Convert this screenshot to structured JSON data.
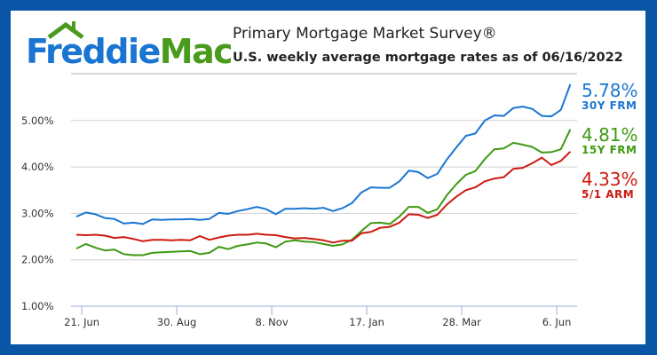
{
  "logo": {
    "part1": "Freddie",
    "part2": "Mac"
  },
  "header": {
    "title": "Primary Mortgage Market Survey®",
    "subtitle": "U.S. weekly average mortgage rates as of 06/16/2022"
  },
  "colors": {
    "border": "#0a55a6",
    "blue": "#1a76d2",
    "green": "#3f9a12",
    "red": "#cc1a10"
  },
  "chart_data": {
    "type": "line",
    "title": "Primary Mortgage Market Survey®",
    "subtitle": "U.S. weekly average mortgage rates as of 06/16/2022",
    "x_start": "2021-06-17",
    "x_interval": "weekly",
    "ylim": [
      1.0,
      5.9
    ],
    "y_ticks": [
      "1.00%",
      "2.00%",
      "3.00%",
      "4.00%",
      "5.00%"
    ],
    "y_tick_values": [
      1,
      2,
      3,
      4,
      5
    ],
    "x_ticks": [
      "21. Jun",
      "30. Aug",
      "8. Nov",
      "17. Jan",
      "28. Mar",
      "6. Jun"
    ],
    "x_tick_week_offsets": [
      0.57,
      10.57,
      20.57,
      30.57,
      40.57,
      50.57
    ],
    "grid": true,
    "series": [
      {
        "name": "30Y FRM",
        "latest": "5.78%",
        "color": "#1a76d2",
        "values": [
          2.93,
          3.02,
          2.98,
          2.9,
          2.88,
          2.78,
          2.8,
          2.77,
          2.87,
          2.86,
          2.87,
          2.87,
          2.88,
          2.86,
          2.88,
          3.01,
          2.99,
          3.05,
          3.09,
          3.14,
          3.09,
          2.98,
          3.1,
          3.1,
          3.11,
          3.1,
          3.12,
          3.05,
          3.11,
          3.22,
          3.45,
          3.56,
          3.55,
          3.55,
          3.69,
          3.92,
          3.89,
          3.76,
          3.85,
          4.16,
          4.42,
          4.67,
          4.72,
          5.0,
          5.11,
          5.1,
          5.27,
          5.3,
          5.25,
          5.1,
          5.09,
          5.23,
          5.78
        ]
      },
      {
        "name": "15Y FRM",
        "latest": "4.81%",
        "color": "#3f9a12",
        "values": [
          2.24,
          2.34,
          2.26,
          2.2,
          2.22,
          2.12,
          2.1,
          2.1,
          2.15,
          2.16,
          2.17,
          2.18,
          2.19,
          2.12,
          2.15,
          2.28,
          2.23,
          2.3,
          2.33,
          2.37,
          2.35,
          2.27,
          2.39,
          2.42,
          2.39,
          2.38,
          2.34,
          2.3,
          2.33,
          2.43,
          2.62,
          2.79,
          2.8,
          2.77,
          2.93,
          3.14,
          3.14,
          3.01,
          3.09,
          3.39,
          3.63,
          3.83,
          3.91,
          4.17,
          4.38,
          4.4,
          4.52,
          4.48,
          4.43,
          4.31,
          4.32,
          4.38,
          4.81
        ]
      },
      {
        "name": "5/1 ARM",
        "latest": "4.33%",
        "color": "#cc1a10",
        "values": [
          2.54,
          2.53,
          2.54,
          2.52,
          2.47,
          2.49,
          2.45,
          2.4,
          2.43,
          2.43,
          2.42,
          2.43,
          2.42,
          2.51,
          2.43,
          2.48,
          2.52,
          2.54,
          2.54,
          2.56,
          2.54,
          2.53,
          2.49,
          2.46,
          2.47,
          2.45,
          2.42,
          2.37,
          2.41,
          2.41,
          2.57,
          2.6,
          2.69,
          2.71,
          2.8,
          2.98,
          2.97,
          2.9,
          2.97,
          3.19,
          3.36,
          3.5,
          3.56,
          3.69,
          3.75,
          3.78,
          3.96,
          3.98,
          4.08,
          4.2,
          4.04,
          4.13,
          4.33
        ]
      }
    ]
  }
}
